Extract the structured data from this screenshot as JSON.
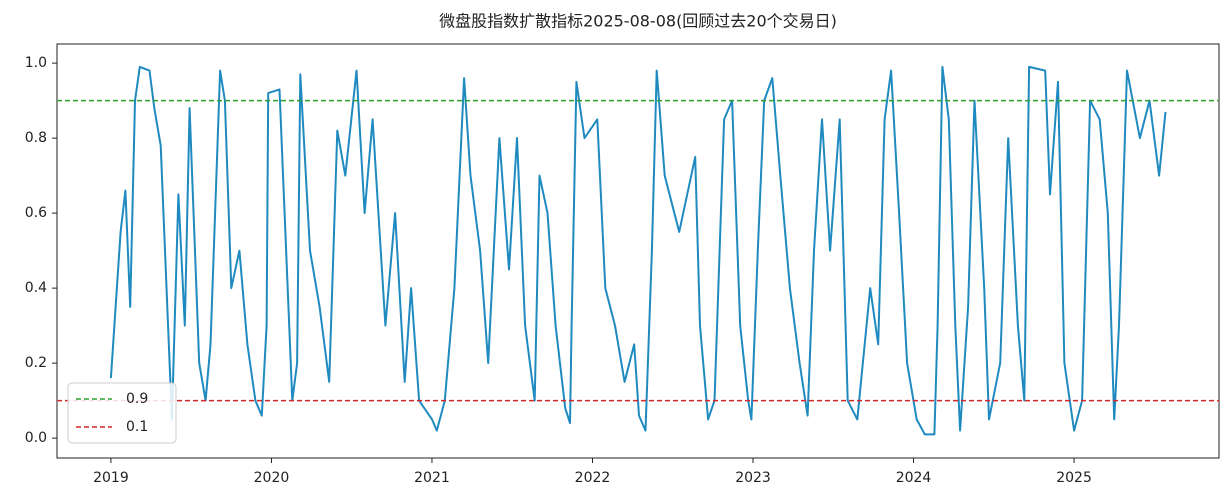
{
  "chart_data": {
    "type": "line",
    "title": "微盘股指数扩散指标2025-08-08(回顾过去20个交易日)",
    "x": [
      2019.0,
      2019.06,
      2019.09,
      2019.12,
      2019.15,
      2019.18,
      2019.24,
      2019.27,
      2019.31,
      2019.38,
      2019.42,
      2019.46,
      2019.49,
      2019.55,
      2019.59,
      2019.62,
      2019.68,
      2019.71,
      2019.75,
      2019.8,
      2019.85,
      2019.9,
      2019.94,
      2019.97,
      2019.98,
      2020.05,
      2020.13,
      2020.16,
      2020.18,
      2020.24,
      2020.3,
      2020.36,
      2020.41,
      2020.46,
      2020.53,
      2020.58,
      2020.63,
      2020.71,
      2020.77,
      2020.83,
      2020.87,
      2020.92,
      2021.0,
      2021.03,
      2021.08,
      2021.14,
      2021.2,
      2021.24,
      2021.3,
      2021.35,
      2021.42,
      2021.48,
      2021.53,
      2021.58,
      2021.64,
      2021.67,
      2021.72,
      2021.77,
      2021.83,
      2021.86,
      2021.87,
      2021.9,
      2021.95,
      2022.03,
      2022.08,
      2022.14,
      2022.2,
      2022.26,
      2022.29,
      2022.33,
      2022.37,
      2022.4,
      2022.45,
      2022.54,
      2022.64,
      2022.67,
      2022.72,
      2022.76,
      2022.82,
      2022.87,
      2022.92,
      2022.97,
      2022.99,
      2023.03,
      2023.07,
      2023.12,
      2023.17,
      2023.23,
      2023.29,
      2023.34,
      2023.38,
      2023.43,
      2023.48,
      2023.54,
      2023.59,
      2023.65,
      2023.73,
      2023.78,
      2023.82,
      2023.86,
      2023.91,
      2023.96,
      2024.02,
      2024.07,
      2024.13,
      2024.15,
      2024.18,
      2024.22,
      2024.26,
      2024.29,
      2024.34,
      2024.38,
      2024.44,
      2024.47,
      2024.54,
      2024.59,
      2024.65,
      2024.69,
      2024.72,
      2024.82,
      2024.85,
      2024.9,
      2024.94,
      2025.0,
      2025.05,
      2025.1,
      2025.16,
      2025.21,
      2025.25,
      2025.28,
      2025.33,
      2025.41,
      2025.47,
      2025.53,
      2025.57
    ],
    "series": [
      {
        "color": "#1f8ac0",
        "values": [
          0.16,
          0.55,
          0.66,
          0.35,
          0.9,
          0.99,
          0.98,
          0.88,
          0.78,
          0.05,
          0.65,
          0.3,
          0.88,
          0.2,
          0.1,
          0.25,
          0.98,
          0.9,
          0.4,
          0.5,
          0.25,
          0.1,
          0.06,
          0.3,
          0.92,
          0.93,
          0.1,
          0.2,
          0.97,
          0.5,
          0.35,
          0.15,
          0.82,
          0.7,
          0.98,
          0.6,
          0.85,
          0.3,
          0.6,
          0.15,
          0.4,
          0.1,
          0.05,
          0.02,
          0.1,
          0.4,
          0.96,
          0.7,
          0.5,
          0.2,
          0.8,
          0.45,
          0.8,
          0.3,
          0.1,
          0.7,
          0.6,
          0.3,
          0.08,
          0.04,
          0.3,
          0.95,
          0.8,
          0.85,
          0.4,
          0.3,
          0.15,
          0.25,
          0.06,
          0.02,
          0.5,
          0.98,
          0.7,
          0.55,
          0.75,
          0.3,
          0.05,
          0.1,
          0.85,
          0.9,
          0.3,
          0.1,
          0.05,
          0.5,
          0.9,
          0.96,
          0.7,
          0.4,
          0.2,
          0.06,
          0.5,
          0.85,
          0.5,
          0.85,
          0.1,
          0.05,
          0.4,
          0.25,
          0.85,
          0.98,
          0.6,
          0.2,
          0.05,
          0.01,
          0.01,
          0.3,
          0.99,
          0.85,
          0.3,
          0.02,
          0.35,
          0.9,
          0.4,
          0.05,
          0.2,
          0.8,
          0.3,
          0.1,
          0.99,
          0.98,
          0.65,
          0.95,
          0.2,
          0.02,
          0.1,
          0.9,
          0.85,
          0.6,
          0.05,
          0.3,
          0.98,
          0.8,
          0.9,
          0.7,
          0.87
        ]
      }
    ],
    "hlines": [
      {
        "name": "0.9",
        "value": 0.9,
        "color": "#2ca02c"
      },
      {
        "name": "0.1",
        "value": 0.1,
        "color": "#d62728"
      }
    ],
    "xlim": [
      2018.664,
      2025.903
    ],
    "xticks": [
      2019,
      2020,
      2021,
      2022,
      2023,
      2024,
      2025
    ],
    "ylim": [
      -0.053,
      1.051
    ],
    "yticks": [
      {
        "value": 0,
        "label": "0.0"
      },
      0.2,
      0.4,
      0.6,
      0.8,
      {
        "value": 1,
        "label": "1.0"
      }
    ],
    "legend": "lower left"
  }
}
